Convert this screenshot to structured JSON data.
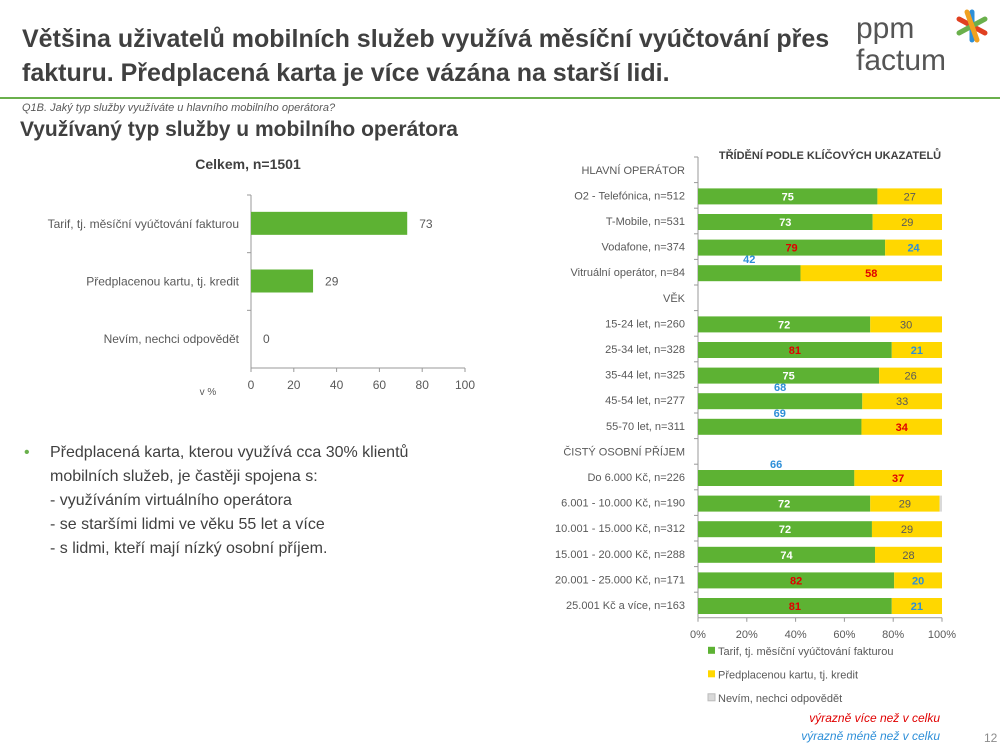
{
  "header": {
    "title": "Většina uživatelů mobilních služeb využívá měsíční vyúčtování přes fakturu. Předplacená karta je více vázána na starší lidi.",
    "logo_text": "ppm factum"
  },
  "question": "Q1B. Jaký typ služby využíváte u hlavního mobilního operátora?",
  "subtitle": "Využívaný typ služby u mobilního operátora",
  "colors": {
    "green": "#5db233",
    "yellow": "#ffd700",
    "gray": "#d9d9d9",
    "more": "#e00000",
    "less": "#2e8fd8",
    "accent": "#6ab04c"
  },
  "bullets": {
    "lines": [
      "Předplacená karta, kterou využívá cca 30% klientů",
      "mobilních služeb, je častěji spojena s:",
      "- využíváním virtuálního operátora",
      "- se staršími lidmi ve věku 55 let a více",
      "- s lidmi, kteří mají nízký osobní příjem."
    ]
  },
  "notes": {
    "more": "výrazně více než v celku",
    "less": "výrazně méně než v celku"
  },
  "page_number": "12",
  "chart_data": [
    {
      "type": "bar",
      "orientation": "horizontal",
      "title": "Celkem, n=1501",
      "categories": [
        "Tarif, tj. měsíční vyúčtování fakturou",
        "Předplacenou kartu, tj. kredit",
        "Nevím, nechci odpovědět"
      ],
      "values": [
        73,
        29,
        0
      ],
      "xlabel": "v %",
      "xlim": [
        0,
        100
      ],
      "xticks": [
        "0",
        "20",
        "40",
        "60",
        "80",
        "100"
      ],
      "grid": false
    },
    {
      "type": "bar",
      "orientation": "horizontal",
      "stacked": "100%",
      "title": "TŘÍDĚNÍ PODLE KLÍČOVÝCH UKAZATELŮ",
      "xticks": [
        "0%",
        "20%",
        "40%",
        "60%",
        "80%",
        "100%"
      ],
      "xlim": [
        0,
        100
      ],
      "grid": false,
      "legend_position": "bottom",
      "series": [
        {
          "name": "Tarif, tj. měsíční vyúčtování fakturou"
        },
        {
          "name": "Předplacenou kartu, tj. kredit"
        },
        {
          "name": "Nevím, nechci odpovědět"
        }
      ],
      "rows": [
        {
          "label": "HLAVNÍ OPERÁTOR",
          "group": true
        },
        {
          "label": "O2 - Telefónica, n=512",
          "values": [
            75,
            27,
            0
          ],
          "flags": [
            null,
            null
          ]
        },
        {
          "label": "T-Mobile, n=531",
          "values": [
            73,
            29,
            0
          ],
          "flags": [
            null,
            null
          ]
        },
        {
          "label": "Vodafone, n=374",
          "values": [
            79,
            24,
            0
          ],
          "flags": [
            "more",
            "less"
          ]
        },
        {
          "label": "Vitruální operátor, n=84",
          "values": [
            42,
            58,
            0
          ],
          "flags": [
            "less",
            "more"
          ]
        },
        {
          "label": "VĚK",
          "group": true
        },
        {
          "label": "15-24 let, n=260",
          "values": [
            72,
            30,
            0
          ],
          "flags": [
            null,
            null
          ]
        },
        {
          "label": "25-34 let, n=328",
          "values": [
            81,
            21,
            0
          ],
          "flags": [
            "more",
            "less"
          ]
        },
        {
          "label": "35-44 let, n=325",
          "values": [
            75,
            26,
            0
          ],
          "flags": [
            null,
            null
          ]
        },
        {
          "label": "45-54 let, n=277",
          "values": [
            68,
            33,
            0
          ],
          "flags": [
            "less",
            null
          ]
        },
        {
          "label": "55-70 let, n=311",
          "values": [
            69,
            34,
            0
          ],
          "flags": [
            "less",
            "more"
          ]
        },
        {
          "label": "ČISTÝ OSOBNÍ PŘÍJEM",
          "group": true
        },
        {
          "label": "Do 6.000 Kč, n=226",
          "values": [
            66,
            37,
            0
          ],
          "flags": [
            "less",
            "more"
          ]
        },
        {
          "label": "6.001 - 10.000 Kč, n=190",
          "values": [
            72,
            29,
            1
          ],
          "flags": [
            null,
            null
          ]
        },
        {
          "label": "10.001 - 15.000 Kč, n=312",
          "values": [
            72,
            29,
            0
          ],
          "flags": [
            null,
            null
          ]
        },
        {
          "label": "15.001 - 20.000 Kč, n=288",
          "values": [
            74,
            28,
            0
          ],
          "flags": [
            null,
            null
          ]
        },
        {
          "label": "20.001 - 25.000 Kč, n=171",
          "values": [
            82,
            20,
            0
          ],
          "flags": [
            "more",
            "less"
          ]
        },
        {
          "label": "25.001 Kč a více, n=163",
          "values": [
            81,
            21,
            0
          ],
          "flags": [
            "more",
            "less"
          ]
        }
      ]
    }
  ]
}
